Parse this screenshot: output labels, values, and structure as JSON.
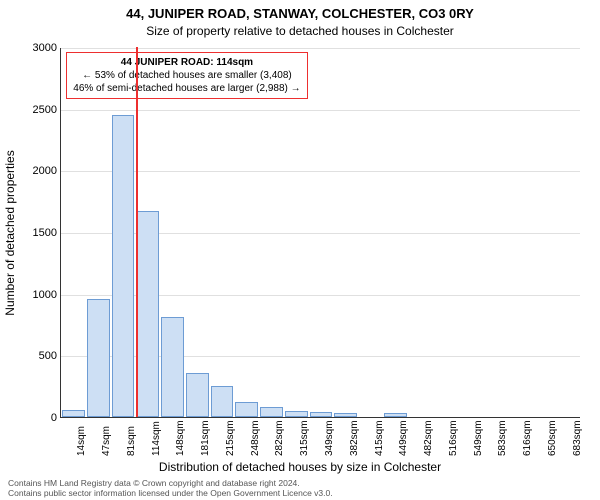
{
  "title_main": "44, JUNIPER ROAD, STANWAY, COLCHESTER, CO3 0RY",
  "title_sub": "Size of property relative to detached houses in Colchester",
  "y_label": "Number of detached properties",
  "x_label": "Distribution of detached houses by size in Colchester",
  "footer_line1": "Contains HM Land Registry data © Crown copyright and database right 2024.",
  "footer_line2": "Contains public sector information licensed under the Open Government Licence v3.0.",
  "info_box": {
    "line1": "44 JUNIPER ROAD: 114sqm",
    "line2": "← 53% of detached houses are smaller (3,408)",
    "line3": "46% of semi-detached houses are larger (2,988) →"
  },
  "chart": {
    "type": "histogram",
    "ylim": [
      0,
      3000
    ],
    "ytick_step": 500,
    "yticks": [
      0,
      500,
      1000,
      1500,
      2000,
      2500,
      3000
    ],
    "x_categories": [
      "14sqm",
      "47sqm",
      "81sqm",
      "114sqm",
      "148sqm",
      "181sqm",
      "215sqm",
      "248sqm",
      "282sqm",
      "315sqm",
      "349sqm",
      "382sqm",
      "415sqm",
      "449sqm",
      "482sqm",
      "516sqm",
      "549sqm",
      "583sqm",
      "616sqm",
      "650sqm",
      "683sqm"
    ],
    "values": [
      60,
      960,
      2450,
      1670,
      810,
      360,
      250,
      120,
      80,
      50,
      40,
      30,
      0,
      30,
      0,
      0,
      0,
      0,
      0,
      0,
      0
    ],
    "marker_index": 3,
    "bar_fill": "#cddff4",
    "bar_border": "#6d9cd4",
    "marker_color": "#ed2f2f",
    "grid_color": "#e0e0e0",
    "background_color": "#ffffff",
    "title_fontsize": 13,
    "label_fontsize": 12,
    "tick_fontsize": 10
  }
}
